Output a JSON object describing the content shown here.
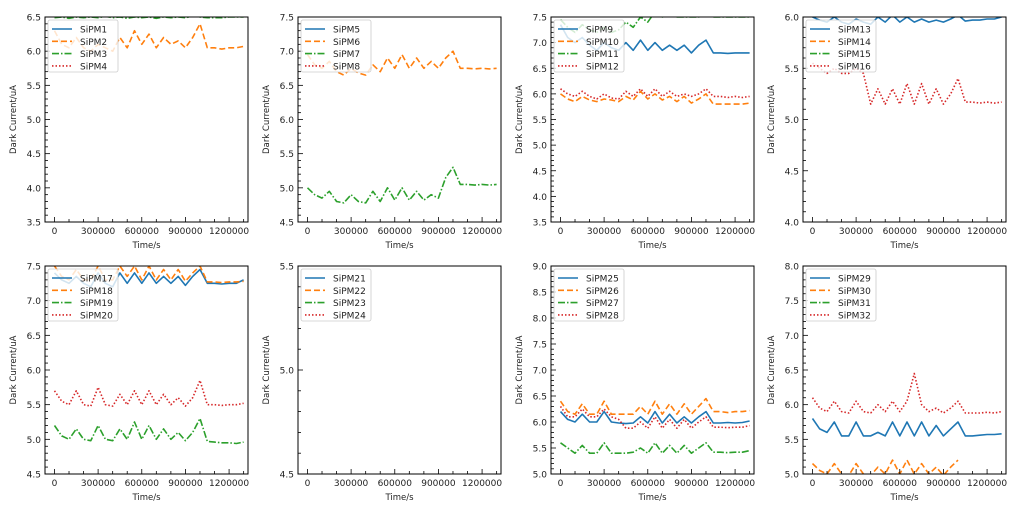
{
  "colors": {
    "c0": "#1f77b4",
    "c1": "#ff7f0e",
    "c2": "#2ca02c",
    "c3": "#d62728"
  },
  "chart_data": [
    {
      "type": "line",
      "xlabel": "Time/s",
      "ylabel": "Dark Current/uA",
      "xlim": [
        -65000,
        1330000
      ],
      "ylim": [
        3.5,
        6.5
      ],
      "xticks": [
        "0",
        "300000",
        "600000",
        "900000",
        "1200000"
      ],
      "yticks": [
        "3.5",
        "4.0",
        "4.5",
        "5.0",
        "5.5",
        "6.0",
        "6.5"
      ],
      "legend_position": "upper-left",
      "series": [
        {
          "name": "SiPM1",
          "style": "solid",
          "values": []
        },
        {
          "name": "SiPM2",
          "style": "dashed",
          "values": [
            6.3,
            6.1,
            6.05,
            6.2,
            6.05,
            6.0,
            6.1,
            6.05,
            6.0,
            6.2,
            6.05,
            6.3,
            6.1,
            6.25,
            6.05,
            6.2,
            6.1,
            6.15,
            6.05,
            6.2,
            6.4,
            6.05,
            6.05,
            6.03,
            6.05,
            6.05,
            6.07
          ]
        },
        {
          "name": "SiPM3",
          "style": "dashdot",
          "values": [
            6.49,
            6.5,
            6.48,
            6.5,
            6.49,
            6.5,
            6.49,
            6.51,
            6.49,
            6.5,
            6.48,
            6.5,
            6.49,
            6.5,
            6.48,
            6.5,
            6.49,
            6.5,
            6.49,
            6.51,
            6.5,
            6.49,
            6.49,
            6.49,
            6.5,
            6.5,
            6.5
          ]
        },
        {
          "name": "SiPM4",
          "style": "dotted",
          "values": []
        }
      ]
    },
    {
      "type": "line",
      "xlabel": "Time/s",
      "ylabel": "Dark Current/uA",
      "xlim": [
        -65000,
        1330000
      ],
      "ylim": [
        4.5,
        7.5
      ],
      "xticks": [
        "0",
        "300000",
        "600000",
        "900000",
        "1200000"
      ],
      "yticks": [
        "4.5",
        "5.0",
        "5.5",
        "6.0",
        "6.5",
        "7.0",
        "7.5"
      ],
      "legend_position": "upper-left",
      "series": [
        {
          "name": "SiPM5",
          "style": "solid",
          "values": []
        },
        {
          "name": "SiPM6",
          "style": "dashed",
          "values": [
            6.95,
            6.8,
            6.75,
            6.85,
            6.7,
            6.65,
            6.75,
            6.68,
            6.65,
            6.8,
            6.7,
            6.9,
            6.75,
            6.95,
            6.75,
            6.9,
            6.75,
            6.85,
            6.75,
            6.9,
            7.0,
            6.75,
            6.75,
            6.74,
            6.75,
            6.74,
            6.75
          ]
        },
        {
          "name": "SiPM7",
          "style": "dashdot",
          "values": [
            5.0,
            4.9,
            4.85,
            4.95,
            4.8,
            4.78,
            4.9,
            4.8,
            4.78,
            4.95,
            4.8,
            5.0,
            4.82,
            5.0,
            4.82,
            4.95,
            4.82,
            4.9,
            4.85,
            5.15,
            5.3,
            5.05,
            5.05,
            5.04,
            5.05,
            5.04,
            5.05
          ]
        },
        {
          "name": "SiPM8",
          "style": "dotted",
          "values": []
        }
      ]
    },
    {
      "type": "line",
      "xlabel": "Time/s",
      "ylabel": "Dark Current/uA",
      "xlim": [
        -65000,
        1330000
      ],
      "ylim": [
        3.5,
        7.5
      ],
      "xticks": [
        "0",
        "300000",
        "600000",
        "900000",
        "1200000"
      ],
      "yticks": [
        "3.5",
        "4.0",
        "4.5",
        "5.0",
        "5.5",
        "6.0",
        "6.5",
        "7.0",
        "7.5"
      ],
      "legend_position": "upper-left",
      "series": [
        {
          "name": "SiPM9",
          "style": "solid",
          "values": [
            7.35,
            7.1,
            7.0,
            7.1,
            6.95,
            6.85,
            7.0,
            6.9,
            6.85,
            7.0,
            6.85,
            7.05,
            6.85,
            7.0,
            6.85,
            6.95,
            6.85,
            6.95,
            6.8,
            6.95,
            7.05,
            6.8,
            6.8,
            6.79,
            6.8,
            6.8,
            6.8
          ]
        },
        {
          "name": "SiPM10",
          "style": "dashed",
          "values": [
            6.0,
            5.9,
            5.85,
            5.95,
            5.88,
            5.85,
            5.9,
            5.88,
            5.85,
            5.95,
            5.88,
            6.05,
            5.9,
            6.0,
            5.88,
            5.95,
            5.85,
            5.95,
            5.82,
            5.9,
            6.0,
            5.8,
            5.8,
            5.8,
            5.8,
            5.8,
            5.82
          ]
        },
        {
          "name": "SiPM11",
          "style": "dashdot",
          "values": [
            7.45,
            7.3,
            7.2,
            7.35,
            7.25,
            7.2,
            7.3,
            7.2,
            7.25,
            7.4,
            7.3,
            7.5,
            7.4,
            7.6,
            7.5,
            7.55,
            7.5,
            7.5,
            7.5,
            7.5,
            7.55,
            7.5,
            7.5,
            7.5,
            7.5,
            7.5,
            7.5
          ]
        },
        {
          "name": "SiPM12",
          "style": "dotted",
          "values": [
            6.1,
            6.0,
            5.95,
            6.05,
            5.95,
            5.9,
            6.0,
            5.92,
            5.9,
            6.05,
            5.95,
            6.1,
            5.95,
            6.1,
            5.95,
            6.05,
            5.95,
            6.0,
            5.95,
            6.0,
            6.1,
            5.95,
            5.95,
            5.93,
            5.95,
            5.93,
            5.95
          ]
        }
      ]
    },
    {
      "type": "line",
      "xlabel": "Time/s",
      "ylabel": "Dark Current/uA",
      "xlim": [
        -65000,
        1330000
      ],
      "ylim": [
        4.0,
        6.0
      ],
      "xticks": [
        "0",
        "300000",
        "600000",
        "900000",
        "1200000"
      ],
      "yticks": [
        "4.0",
        "4.5",
        "5.0",
        "5.5",
        "6.0"
      ],
      "legend_position": "upper-left",
      "series": [
        {
          "name": "SiPM13",
          "style": "solid",
          "values": [
            6.0,
            5.97,
            5.95,
            6.0,
            5.95,
            5.93,
            5.98,
            5.95,
            5.93,
            6.0,
            5.95,
            6.02,
            5.95,
            6.0,
            5.95,
            5.98,
            5.95,
            5.97,
            5.95,
            5.98,
            6.02,
            5.96,
            5.97,
            5.97,
            5.98,
            5.98,
            6.0
          ]
        },
        {
          "name": "SiPM14",
          "style": "dashed",
          "values": []
        },
        {
          "name": "SiPM15",
          "style": "dashdot",
          "values": []
        },
        {
          "name": "SiPM16",
          "style": "dotted",
          "values": [
            5.55,
            5.5,
            5.45,
            5.5,
            5.45,
            5.45,
            5.5,
            5.45,
            5.15,
            5.3,
            5.15,
            5.3,
            5.15,
            5.35,
            5.15,
            5.35,
            5.15,
            5.3,
            5.15,
            5.25,
            5.4,
            5.17,
            5.17,
            5.16,
            5.17,
            5.16,
            5.17
          ]
        }
      ]
    },
    {
      "type": "line",
      "xlabel": "Time/s",
      "ylabel": "Dark Current/uA",
      "xlim": [
        -65000,
        1330000
      ],
      "ylim": [
        4.5,
        7.5
      ],
      "xticks": [
        "0",
        "300000",
        "600000",
        "900000",
        "1200000"
      ],
      "yticks": [
        "4.5",
        "5.0",
        "5.5",
        "6.0",
        "6.5",
        "7.0",
        "7.5"
      ],
      "legend_position": "upper-left",
      "series": [
        {
          "name": "SiPM17",
          "style": "solid",
          "values": [
            7.4,
            7.3,
            7.25,
            7.35,
            7.25,
            7.2,
            7.4,
            7.25,
            7.2,
            7.4,
            7.25,
            7.4,
            7.25,
            7.4,
            7.25,
            7.35,
            7.25,
            7.35,
            7.22,
            7.35,
            7.45,
            7.25,
            7.25,
            7.24,
            7.25,
            7.25,
            7.3
          ]
        },
        {
          "name": "SiPM18",
          "style": "dashed",
          "values": [
            7.5,
            7.35,
            7.3,
            7.45,
            7.3,
            7.3,
            7.5,
            7.3,
            7.3,
            7.5,
            7.35,
            7.5,
            7.3,
            7.5,
            7.3,
            7.45,
            7.3,
            7.45,
            7.28,
            7.4,
            7.5,
            7.27,
            7.27,
            7.26,
            7.27,
            7.27,
            7.28
          ]
        },
        {
          "name": "SiPM19",
          "style": "dashdot",
          "values": [
            5.2,
            5.05,
            5.0,
            5.15,
            5.0,
            4.98,
            5.2,
            5.0,
            4.98,
            5.15,
            5.0,
            5.25,
            5.0,
            5.2,
            5.0,
            5.15,
            5.0,
            5.1,
            4.98,
            5.1,
            5.3,
            4.97,
            4.96,
            4.95,
            4.95,
            4.94,
            4.96
          ]
        },
        {
          "name": "SiPM20",
          "style": "dotted",
          "values": [
            5.7,
            5.55,
            5.5,
            5.7,
            5.5,
            5.48,
            5.75,
            5.5,
            5.48,
            5.65,
            5.5,
            5.7,
            5.5,
            5.7,
            5.5,
            5.65,
            5.5,
            5.6,
            5.48,
            5.6,
            5.85,
            5.5,
            5.5,
            5.49,
            5.5,
            5.5,
            5.52
          ]
        }
      ]
    },
    {
      "type": "line",
      "xlabel": "Time/s",
      "ylabel": "Dark Current/uA",
      "xlim": [
        -65000,
        1330000
      ],
      "ylim": [
        4.5,
        5.5
      ],
      "xticks": [
        "0",
        "300000",
        "600000",
        "900000",
        "1200000"
      ],
      "yticks": [
        "4.5",
        "5.0",
        "5.5"
      ],
      "legend_position": "upper-left",
      "series": [
        {
          "name": "SiPM21",
          "style": "solid",
          "values": []
        },
        {
          "name": "SiPM22",
          "style": "dashed",
          "values": []
        },
        {
          "name": "SiPM23",
          "style": "dashdot",
          "values": []
        },
        {
          "name": "SiPM24",
          "style": "dotted",
          "values": []
        }
      ]
    },
    {
      "type": "line",
      "xlabel": "Time/s",
      "ylabel": "Dark Current/uA",
      "xlim": [
        -65000,
        1330000
      ],
      "ylim": [
        5.0,
        9.0
      ],
      "xticks": [
        "0",
        "300000",
        "600000",
        "900000",
        "1200000"
      ],
      "yticks": [
        "5.0",
        "5.5",
        "6.0",
        "6.5",
        "7.0",
        "7.5",
        "8.0",
        "8.5",
        "9.0"
      ],
      "legend_position": "upper-left",
      "series": [
        {
          "name": "SiPM25",
          "style": "solid",
          "values": [
            6.2,
            6.05,
            6.0,
            6.15,
            6.0,
            6.0,
            6.2,
            6.0,
            5.98,
            5.97,
            5.98,
            6.1,
            5.98,
            6.2,
            5.98,
            6.15,
            5.98,
            6.1,
            5.98,
            6.1,
            6.2,
            5.98,
            5.98,
            5.99,
            5.98,
            5.99,
            6.02
          ]
        },
        {
          "name": "SiPM26",
          "style": "dashed",
          "values": [
            6.4,
            6.2,
            6.15,
            6.35,
            6.15,
            6.15,
            6.4,
            6.15,
            6.15,
            6.15,
            6.15,
            6.3,
            6.15,
            6.4,
            6.15,
            6.35,
            6.15,
            6.35,
            6.15,
            6.3,
            6.45,
            6.2,
            6.2,
            6.18,
            6.2,
            6.2,
            6.22
          ]
        },
        {
          "name": "SiPM27",
          "style": "dashdot",
          "values": [
            5.6,
            5.5,
            5.4,
            5.55,
            5.4,
            5.4,
            5.6,
            5.4,
            5.4,
            5.4,
            5.42,
            5.5,
            5.4,
            5.6,
            5.4,
            5.55,
            5.4,
            5.55,
            5.4,
            5.5,
            5.6,
            5.42,
            5.42,
            5.41,
            5.42,
            5.42,
            5.45
          ]
        },
        {
          "name": "SiPM28",
          "style": "dotted",
          "values": [
            6.3,
            6.1,
            6.1,
            6.25,
            6.1,
            6.1,
            6.25,
            6.1,
            6.05,
            5.88,
            5.88,
            6.0,
            5.88,
            6.1,
            5.88,
            6.05,
            5.88,
            6.05,
            5.88,
            6.0,
            6.1,
            5.9,
            5.9,
            5.89,
            5.9,
            5.9,
            5.93
          ]
        }
      ]
    },
    {
      "type": "line",
      "xlabel": "Time/s",
      "ylabel": "Dark Current/uA",
      "xlim": [
        -65000,
        1330000
      ],
      "ylim": [
        5.0,
        8.0
      ],
      "xticks": [
        "0",
        "300000",
        "600000",
        "900000",
        "1200000"
      ],
      "yticks": [
        "5.0",
        "5.5",
        "6.0",
        "6.5",
        "7.0",
        "7.5",
        "8.0"
      ],
      "legend_position": "upper-left",
      "series": [
        {
          "name": "SiPM29",
          "style": "solid",
          "values": [
            5.8,
            5.65,
            5.6,
            5.75,
            5.55,
            5.55,
            5.75,
            5.55,
            5.55,
            5.6,
            5.55,
            5.75,
            5.55,
            5.75,
            5.55,
            5.75,
            5.55,
            5.7,
            5.55,
            5.65,
            5.75,
            5.55,
            5.55,
            5.56,
            5.57,
            5.57,
            5.58
          ]
        },
        {
          "name": "SiPM30",
          "style": "dashed",
          "values": [
            5.15,
            5.05,
            5.0,
            5.15,
            5.0,
            4.98,
            5.15,
            5.0,
            4.98,
            5.1,
            5.0,
            5.2,
            5.0,
            5.2,
            5.0,
            5.15,
            5.0,
            5.1,
            4.98,
            5.1,
            5.2
          ]
        },
        {
          "name": "SiPM31",
          "style": "dashdot",
          "values": []
        },
        {
          "name": "SiPM32",
          "style": "dotted",
          "values": [
            6.1,
            5.95,
            5.9,
            6.05,
            5.9,
            5.88,
            6.05,
            5.9,
            5.88,
            6.0,
            5.9,
            6.05,
            5.9,
            6.05,
            6.45,
            6.0,
            5.9,
            5.95,
            5.88,
            5.95,
            6.05,
            5.88,
            5.88,
            5.88,
            5.89,
            5.88,
            5.9
          ]
        }
      ]
    }
  ],
  "sample_x": {
    "start": 0,
    "step": 50000
  }
}
